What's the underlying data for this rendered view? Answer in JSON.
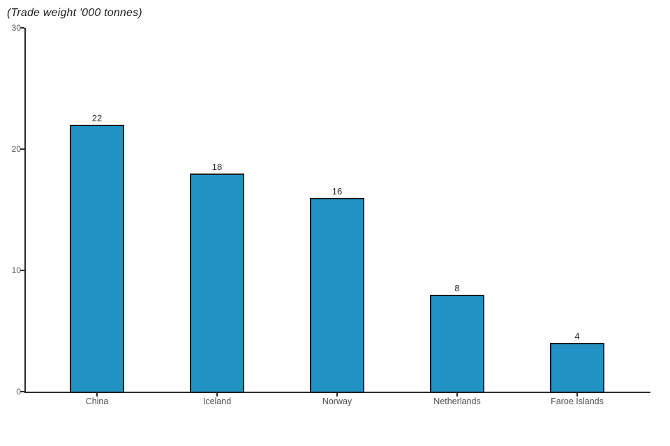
{
  "chart_data": {
    "type": "bar",
    "title": "(Trade weight '000 tonnes)",
    "categories": [
      "China",
      "Iceland",
      "Norway",
      "Netherlands",
      "Faroe Islands"
    ],
    "values": [
      22,
      18,
      16,
      8,
      4
    ],
    "value_labels": [
      "22",
      "18",
      "16",
      "8",
      "4"
    ],
    "xlabel": "",
    "ylabel": "Trade weight '000 tonnes",
    "ylim": [
      0,
      30
    ],
    "yticks": [
      0,
      10,
      20,
      30
    ],
    "grid": false,
    "legend_position": "none",
    "colors": {
      "bar_fill": "#2292c4",
      "bar_border": "#1c1c1c",
      "axis": "#2b2b2b",
      "y_tick_label": "#595959",
      "category_label": "#4d4d4d",
      "value_label": "#262626",
      "background": "#ffffff"
    }
  }
}
